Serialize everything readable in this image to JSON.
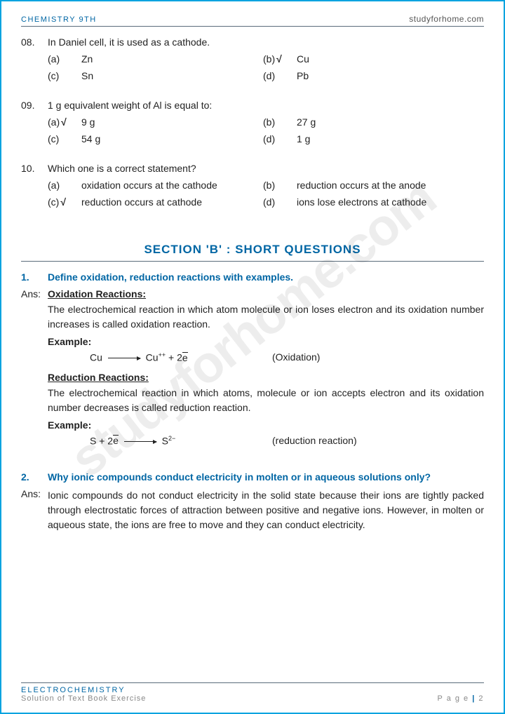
{
  "header": {
    "left": "CHEMISTRY 9TH",
    "right": "studyforhome.com"
  },
  "watermark_text": "studyforhome.com",
  "colors": {
    "accent": "#0066a4",
    "border": "#00a3e0",
    "rule": "#5a6b7a",
    "body_text": "#222222",
    "muted": "#888888",
    "watermark": "rgba(0,0,0,0.07)"
  },
  "mcqs": [
    {
      "num": "08.",
      "text": "In Daniel cell, it is used as a cathode.",
      "opts": [
        {
          "label": "(a)",
          "text": "Zn",
          "checked": false
        },
        {
          "label": "(b)",
          "text": "Cu",
          "checked": true
        },
        {
          "label": "(c)",
          "text": "Sn",
          "checked": false
        },
        {
          "label": "(d)",
          "text": "Pb",
          "checked": false
        }
      ]
    },
    {
      "num": "09.",
      "text": "1 g equivalent weight of Al is equal to:",
      "opts": [
        {
          "label": "(a)",
          "text": "9 g",
          "checked": true
        },
        {
          "label": "(b)",
          "text": "27 g",
          "checked": false
        },
        {
          "label": "(c)",
          "text": "54 g",
          "checked": false
        },
        {
          "label": "(d)",
          "text": "1 g",
          "checked": false
        }
      ]
    },
    {
      "num": "10.",
      "text": "Which one is a correct statement?",
      "opts": [
        {
          "label": "(a)",
          "text": "oxidation occurs at the cathode",
          "checked": false
        },
        {
          "label": "(b)",
          "text": "reduction occurs at the anode",
          "checked": false
        },
        {
          "label": "(c)",
          "text": "reduction occurs at cathode",
          "checked": true
        },
        {
          "label": "(d)",
          "text": "ions lose electrons at cathode",
          "checked": false
        }
      ]
    }
  ],
  "section_b_title": "SECTION 'B' : SHORT QUESTIONS",
  "short_questions": [
    {
      "num": "1.",
      "q": "Define oxidation, reduction reactions with examples.",
      "ans_label": "Ans:",
      "parts": [
        {
          "heading": "Oxidation Reactions:",
          "para": "The electrochemical reaction in which atom molecule or ion loses electron and its oxidation number increases is called oxidation reaction.",
          "example_label": "Example:",
          "eq_note": "(Oxidation)"
        },
        {
          "heading": "Reduction Reactions:",
          "para": "The electrochemical reaction in which atoms, molecule or ion accepts electron and its oxidation number decreases is called reduction reaction.",
          "example_label": "Example:",
          "eq_note": "(reduction reaction)"
        }
      ]
    },
    {
      "num": "2.",
      "q": "Why ionic compounds conduct electricity in molten or in aqueous solutions only?",
      "ans_label": "Ans:",
      "para": "Ionic compounds do not conduct electricity in the solid state because their ions are tightly packed through electrostatic forces of attraction between positive and negative ions. However, in molten or aqueous state, the ions are free to move and they can conduct electricity."
    }
  ],
  "footer": {
    "title": "ELECTROCHEMISTRY",
    "subtitle": "Solution of Text Book Exercise",
    "page_label": "P a g e",
    "page_sep": " | ",
    "page_num": "2"
  },
  "check_glyph": "√"
}
